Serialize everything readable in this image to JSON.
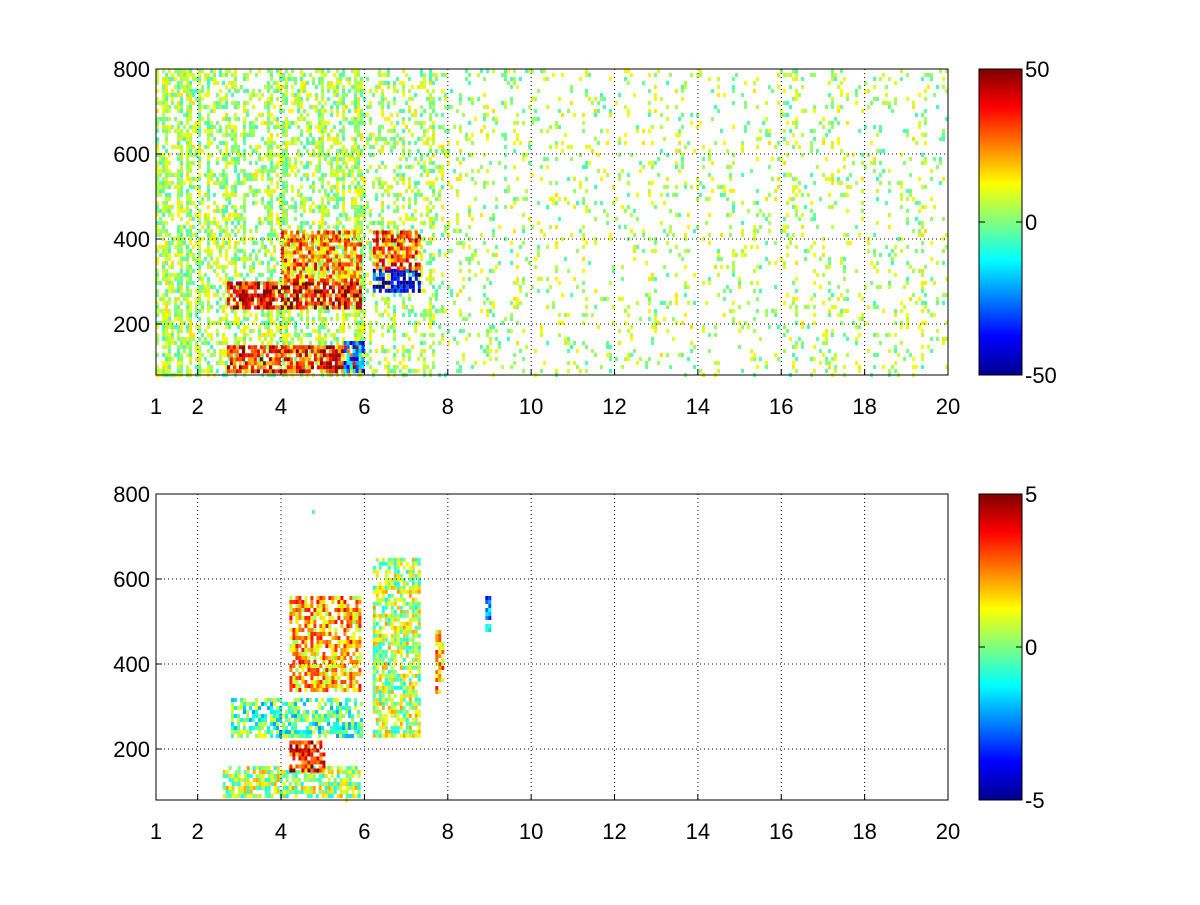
{
  "chart_data": [
    {
      "type": "heatmap",
      "title": "",
      "xlabel": "",
      "ylabel": "",
      "xlim": [
        1,
        20
      ],
      "ylim": [
        80,
        800
      ],
      "xticks": [
        1,
        2,
        4,
        6,
        8,
        10,
        12,
        14,
        16,
        18,
        20
      ],
      "xtick_labels": [
        "1",
        "2",
        "4",
        "6",
        "8",
        "10",
        "12",
        "14",
        "16",
        "18",
        "20"
      ],
      "yticks": [
        200,
        400,
        600,
        800
      ],
      "ytick_labels": [
        "200",
        "400",
        "600",
        "800"
      ],
      "grid": true,
      "colormap": "jet",
      "clim": [
        -50,
        50
      ],
      "colorbar_ticks": [
        -50,
        0,
        50
      ],
      "colorbar_labels": [
        "-50",
        "0",
        "50"
      ],
      "features": [
        {
          "name": "positive band low",
          "x": [
            2.7,
            5.9
          ],
          "y": [
            90,
            150
          ],
          "value": 35
        },
        {
          "name": "positive band mid",
          "x": [
            2.7,
            5.9
          ],
          "y": [
            240,
            300
          ],
          "value": 40
        },
        {
          "name": "positive curved band",
          "x": [
            4.0,
            5.9
          ],
          "y": [
            300,
            420
          ],
          "value": 25
        },
        {
          "name": "negative band",
          "x": [
            6.2,
            7.3
          ],
          "y": [
            280,
            330
          ],
          "value": -40
        },
        {
          "name": "positive band upper",
          "x": [
            6.2,
            7.3
          ],
          "y": [
            330,
            420
          ],
          "value": 30
        },
        {
          "name": "negative region",
          "x": [
            5.5,
            6.0
          ],
          "y": [
            90,
            160
          ],
          "value": -25
        }
      ]
    },
    {
      "type": "heatmap",
      "title": "",
      "xlabel": "",
      "ylabel": "",
      "xlim": [
        1,
        20
      ],
      "ylim": [
        80,
        800
      ],
      "xticks": [
        1,
        2,
        4,
        6,
        8,
        10,
        12,
        14,
        16,
        18,
        20
      ],
      "xtick_labels": [
        "1",
        "2",
        "4",
        "6",
        "8",
        "10",
        "12",
        "14",
        "16",
        "18",
        "20"
      ],
      "yticks": [
        200,
        400,
        600,
        800
      ],
      "ytick_labels": [
        "200",
        "400",
        "600",
        "800"
      ],
      "grid": true,
      "colormap": "jet",
      "clim": [
        -5,
        5
      ],
      "colorbar_ticks": [
        -5,
        0,
        5
      ],
      "colorbar_labels": [
        "-5",
        "0",
        "5"
      ],
      "features": [
        {
          "name": "low band",
          "x": [
            2.6,
            5.9
          ],
          "y": [
            90,
            160
          ],
          "value": 0.5
        },
        {
          "name": "positive patch",
          "x": [
            4.2,
            5.0
          ],
          "y": [
            150,
            220
          ],
          "value": 3.5
        },
        {
          "name": "mid band",
          "x": [
            2.8,
            5.9
          ],
          "y": [
            230,
            320
          ],
          "value": -0.5
        },
        {
          "name": "curved band",
          "x": [
            4.2,
            5.9
          ],
          "y": [
            340,
            560
          ],
          "value": 2
        },
        {
          "name": "cluster",
          "x": [
            6.2,
            7.3
          ],
          "y": [
            230,
            650
          ],
          "value": 0.5
        },
        {
          "name": "streak at 7.8",
          "x": [
            7.7,
            7.9
          ],
          "y": [
            330,
            480
          ],
          "value": 2
        },
        {
          "name": "streak at 9",
          "x": [
            8.9,
            9.0
          ],
          "y": [
            480,
            560
          ],
          "value": -2.5
        }
      ]
    }
  ]
}
